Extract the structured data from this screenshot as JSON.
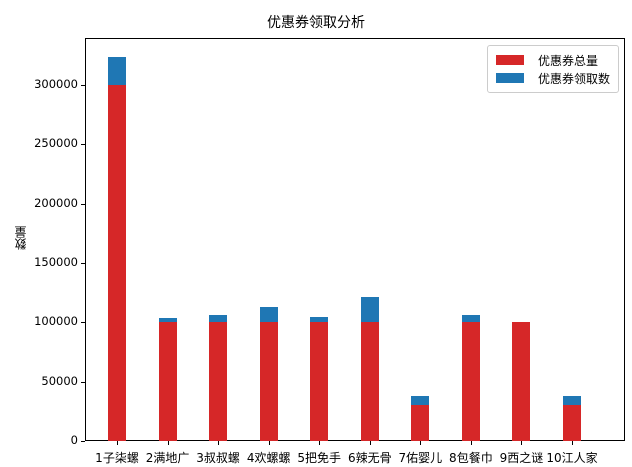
{
  "chart_data": {
    "type": "bar",
    "stacked": true,
    "title": "优惠券领取分析",
    "xlabel": "",
    "ylabel": "数量",
    "ylim": [
      0,
      340000
    ],
    "yticks": [
      0,
      50000,
      100000,
      150000,
      200000,
      250000,
      300000
    ],
    "categories": [
      "1子柒螺",
      "2满地广",
      "3叔叔螺",
      "4欢螺螺",
      "5把免手",
      "6辣无骨",
      "7佑婴儿",
      "8包餐巾",
      "9西之谜",
      "10江人家"
    ],
    "series": [
      {
        "name": "优惠券总量",
        "color": "#d62728",
        "values": [
          300000,
          100000,
          100000,
          100000,
          100000,
          100000,
          30000,
          100000,
          100000,
          30000
        ]
      },
      {
        "name": "优惠券领取数",
        "color": "#1f77b4",
        "values": [
          24000,
          4000,
          6500,
          13000,
          4500,
          21000,
          8000,
          6000,
          0,
          8000
        ]
      }
    ],
    "legend_position": "upper right",
    "grid": false
  }
}
